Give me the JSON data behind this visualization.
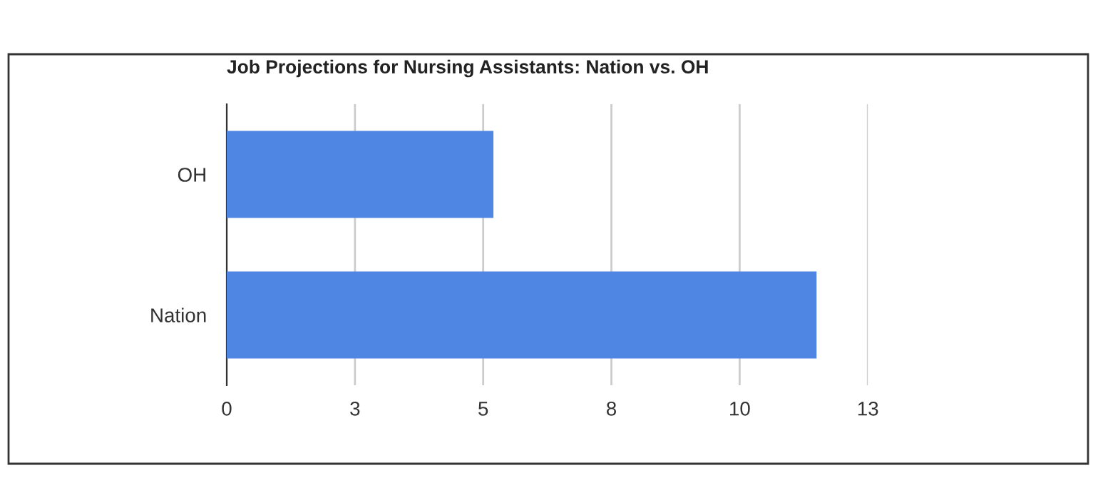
{
  "chart_data": {
    "type": "bar",
    "orientation": "horizontal",
    "title": "Job Projections for Nursing Assistants: Nation vs. OH",
    "categories": [
      "OH",
      "Nation"
    ],
    "values": [
      5.2,
      11.5
    ],
    "color": "#5086e3",
    "xlim": [
      0,
      12.5
    ],
    "xticks": [
      0,
      {
        "value": 2.5,
        "label": "3"
      },
      5,
      {
        "value": 7.5,
        "label": "8"
      },
      10,
      {
        "value": 12.5,
        "label": "13"
      }
    ],
    "grid": "x"
  }
}
